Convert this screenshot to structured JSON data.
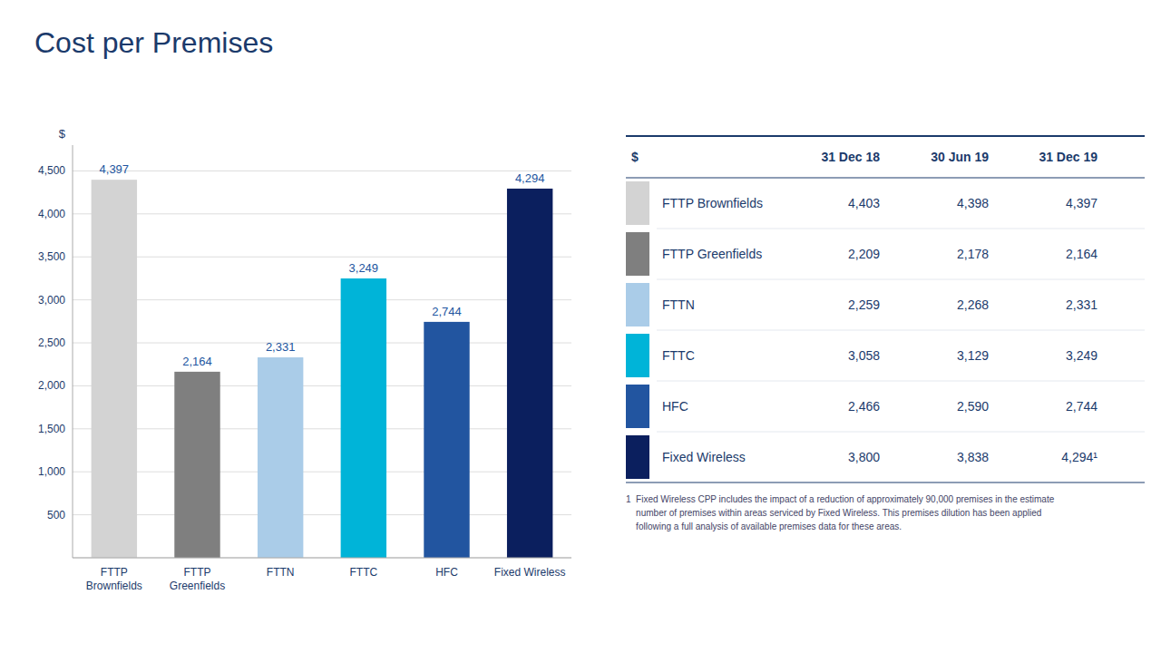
{
  "chart_data": {
    "type": "bar",
    "title": "Cost per Premises",
    "ylabel": "$",
    "categories": [
      "FTTP\nBrownfields",
      "FTTP\nGreenfields",
      "FTTN",
      "FTTC",
      "HFC",
      "Fixed Wireless"
    ],
    "values": [
      4397,
      2164,
      2331,
      3249,
      2744,
      4294
    ],
    "value_labels": [
      "4,397",
      "2,164",
      "2,331",
      "3,249",
      "2,744",
      "4,294"
    ],
    "data_labels": true,
    "colors": [
      "#d3d3d3",
      "#7f7f7f",
      "#aacce8",
      "#00b4d8",
      "#2255a0",
      "#0b1f5e"
    ],
    "ylim": [
      0,
      4800
    ],
    "yticks": [
      {
        "value": 0,
        "label": null
      },
      500,
      {
        "value": 1000,
        "label": "1,000"
      },
      {
        "value": 1500,
        "label": "1,500"
      },
      {
        "value": 2000,
        "label": "2,000"
      },
      {
        "value": 2500,
        "label": "2,500"
      },
      {
        "value": 3000,
        "label": "3,000"
      },
      {
        "value": 3500,
        "label": "3,500"
      },
      {
        "value": 4000,
        "label": "4,000"
      },
      {
        "value": 4500,
        "label": "4,500"
      }
    ],
    "grid": true,
    "table": {
      "headers": [
        "$",
        "31 Dec 18",
        "30 Jun 19",
        "31 Dec 19"
      ],
      "rows": [
        [
          "FTTP Brownfields",
          "4,403",
          "4,398",
          "4,397"
        ],
        [
          "FTTP Greenfields",
          "2,209",
          "2,178",
          "2,164"
        ],
        [
          "FTTN",
          "2,259",
          "2,268",
          "2,331"
        ],
        [
          "FTTC",
          "3,058",
          "3,129",
          "3,249"
        ],
        [
          "HFC",
          "2,466",
          "2,590",
          "2,744"
        ],
        [
          "Fixed Wireless",
          "3,800",
          "3,838",
          "4,294¹"
        ]
      ]
    },
    "footnote": "1  Fixed Wireless CPP includes the impact of a reduction of approximately 90,000 premises in the estimate\n    number of premises within areas serviced by Fixed Wireless. This premises dilution has been applied\n    following a full analysis of available premises data for these areas."
  }
}
